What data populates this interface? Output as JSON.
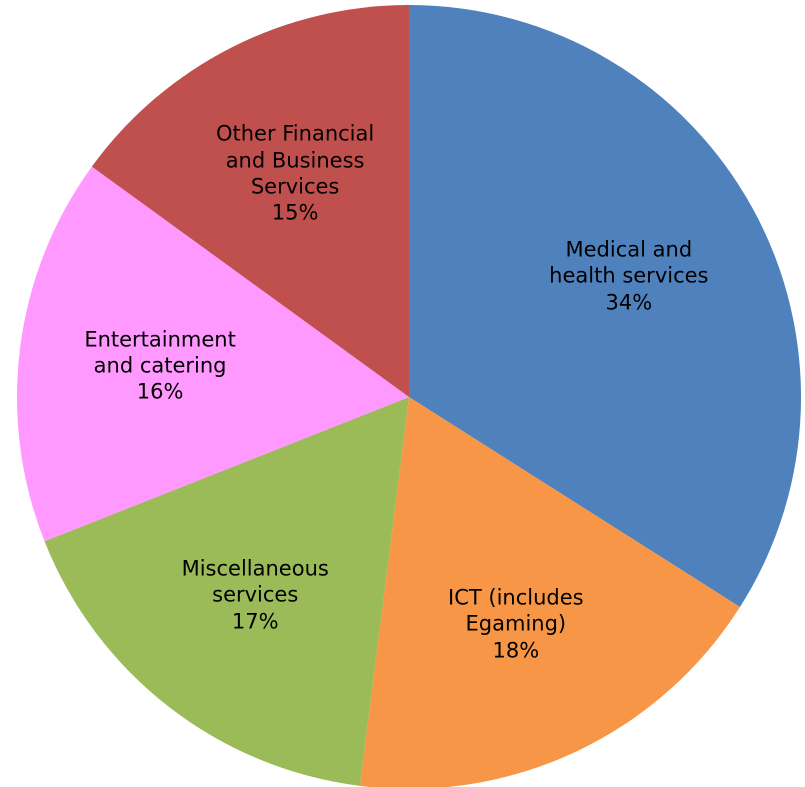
{
  "chart_data": {
    "type": "pie",
    "categories": [
      "Medical and health services",
      "ICT (includes Egaming)",
      "Miscellaneous services",
      "Entertainment and catering",
      "Other Financial and Business Services"
    ],
    "values": [
      34,
      18,
      17,
      16,
      15
    ],
    "value_labels": [
      "34%",
      "18%",
      "17%",
      "16%",
      "15%"
    ],
    "colors": [
      "#4f81bd",
      "#f79646",
      "#9bbb59",
      "#ff99ff",
      "#c0504d"
    ]
  }
}
